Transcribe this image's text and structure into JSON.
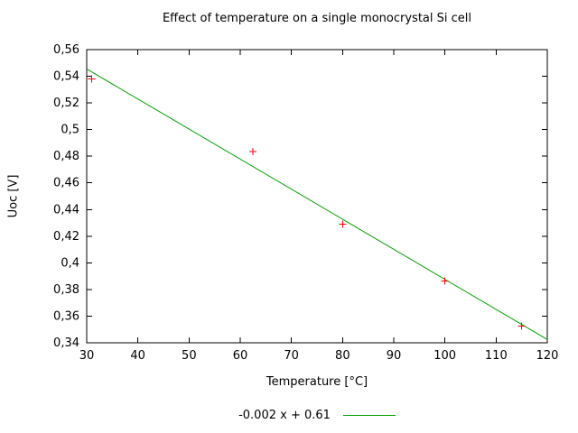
{
  "chart_data": {
    "type": "scatter",
    "title": "Effect of temperature on a single monocrystal Si cell",
    "xlabel": "Temperature [°C]",
    "ylabel": "Uoc [V]",
    "xlim": [
      30,
      120
    ],
    "ylim": [
      0.34,
      0.56
    ],
    "grid": false,
    "decimal_separator": ",",
    "x_ticks": [
      30,
      40,
      50,
      60,
      70,
      80,
      90,
      100,
      110,
      120
    ],
    "x_tick_labels": [
      "30",
      "40",
      "50",
      "60",
      "70",
      "80",
      "90",
      "100",
      "110",
      "120"
    ],
    "y_ticks": [
      0.34,
      0.36,
      0.38,
      0.4,
      0.42,
      0.44,
      0.46,
      0.48,
      0.5,
      0.52,
      0.54,
      0.56
    ],
    "y_tick_labels": [
      "0,34",
      "0,36",
      "0,38",
      "0,4",
      "0,42",
      "0,44",
      "0,46",
      "0,48",
      "0,5",
      "0,52",
      "0,54",
      "0,56"
    ],
    "points": {
      "marker": "plus",
      "color": "#ff0000",
      "x": [
        31,
        62.5,
        80,
        100,
        115
      ],
      "y": [
        0.538,
        0.4835,
        0.429,
        0.3865,
        0.3525
      ]
    },
    "fit_line": {
      "color": "#00a000",
      "x": [
        30,
        120
      ],
      "y": [
        0.5455,
        0.3425
      ]
    },
    "legend": {
      "position": "bottom-center",
      "label": "-0.002 x + 0.61",
      "sample_color": "#00a000"
    }
  }
}
